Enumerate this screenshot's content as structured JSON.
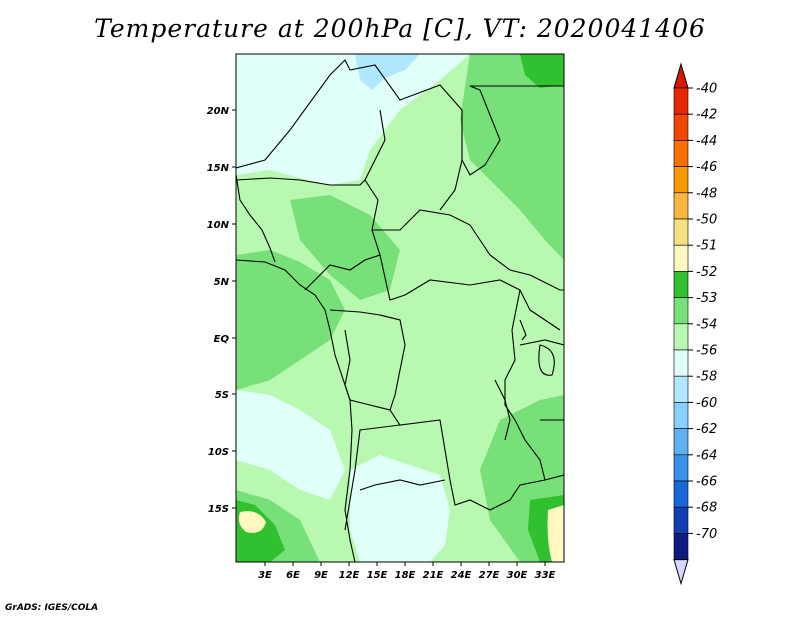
{
  "title": "Temperature at 200hPa [C], VT: 2020041406",
  "credit": "GrADS: IGES/COLA",
  "map": {
    "lat_ticks": [
      "20N",
      "15N",
      "10N",
      "5N",
      "EQ",
      "5S",
      "10S",
      "15S"
    ],
    "lon_ticks": [
      "3E",
      "6E",
      "9E",
      "12E",
      "15E",
      "18E",
      "21E",
      "24E",
      "27E",
      "30E",
      "33E"
    ]
  },
  "colorbar": {
    "levels": [
      {
        "label": "-40",
        "color": "#e82800"
      },
      {
        "label": "-42",
        "color": "#f04800"
      },
      {
        "label": "-44",
        "color": "#f87000"
      },
      {
        "label": "-46",
        "color": "#f89800"
      },
      {
        "label": "-48",
        "color": "#f8b840"
      },
      {
        "label": "-50",
        "color": "#f8e080"
      },
      {
        "label": "-51",
        "color": "#fff8c0"
      },
      {
        "label": "-52",
        "color": "#30c030"
      },
      {
        "label": "-53",
        "color": "#78e078"
      },
      {
        "label": "-54",
        "color": "#b8f8b0"
      },
      {
        "label": "-56",
        "color": "#e0fff8"
      },
      {
        "label": "-58",
        "color": "#b0e8ff"
      },
      {
        "label": "-60",
        "color": "#88d0ff"
      },
      {
        "label": "-62",
        "color": "#60b0f0"
      },
      {
        "label": "-64",
        "color": "#3890e8"
      },
      {
        "label": "-66",
        "color": "#1868d8"
      },
      {
        "label": "-68",
        "color": "#1040b0"
      },
      {
        "label": "-70",
        "color": "#0c1c80"
      }
    ],
    "under_color": "#d8d8f8",
    "over_color": "#d81800"
  }
}
